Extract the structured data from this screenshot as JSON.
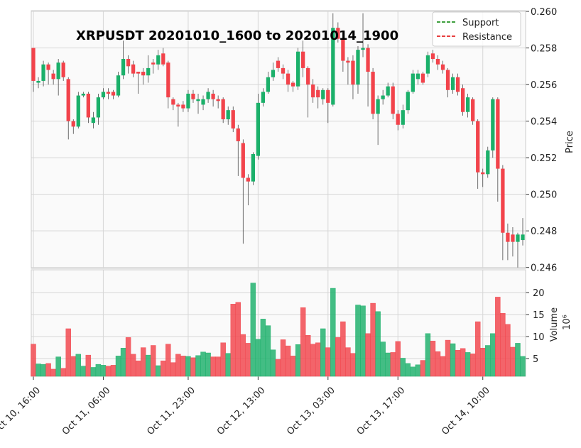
{
  "chart_data": {
    "type": "candlestick",
    "title": "XRPUSDT 20201010_1600 to 20201014_1900",
    "y_label": "Price",
    "y2_label": "Volume",
    "y2_offset": "10⁶",
    "categories": [
      "Oct 10, 16:00",
      null,
      null,
      null,
      null,
      null,
      null,
      null,
      null,
      null,
      null,
      null,
      null,
      null,
      "Oct 11, 06:00",
      null,
      null,
      null,
      null,
      null,
      null,
      null,
      null,
      null,
      null,
      null,
      null,
      null,
      null,
      null,
      null,
      "Oct 11, 23:00",
      null,
      null,
      null,
      null,
      null,
      null,
      null,
      null,
      null,
      null,
      null,
      null,
      null,
      "Oct 12, 13:00",
      null,
      null,
      null,
      null,
      null,
      null,
      null,
      null,
      null,
      null,
      null,
      null,
      null,
      "Oct 13, 03:00",
      null,
      null,
      null,
      null,
      null,
      null,
      null,
      null,
      null,
      null,
      null,
      null,
      null,
      "Oct 13, 17:00",
      null,
      null,
      null,
      null,
      null,
      null,
      null,
      null,
      null,
      null,
      null,
      null,
      null,
      null,
      null,
      null,
      "Oct 14, 10:00",
      null,
      null,
      null,
      null,
      null,
      null,
      null,
      null
    ],
    "open": [
      0.258,
      0.2561,
      0.2562,
      0.2571,
      0.2566,
      0.2563,
      0.2572,
      0.2563,
      0.254,
      0.2537,
      0.2554,
      0.2555,
      0.2539,
      0.2542,
      0.2553,
      0.2556,
      0.2556,
      0.2554,
      0.2565,
      0.2574,
      0.2571,
      0.2567,
      0.2567,
      0.2565,
      0.2572,
      0.2571,
      0.2577,
      0.2572,
      0.2552,
      0.2549,
      0.2549,
      0.2547,
      0.2555,
      0.2551,
      0.2549,
      0.2552,
      0.2555,
      0.2552,
      0.2552,
      0.2541,
      0.2546,
      0.2536,
      0.2528,
      0.2509,
      0.2507,
      0.2521,
      0.255,
      0.2556,
      0.2564,
      0.2573,
      0.2569,
      0.2566,
      0.2561,
      0.2559,
      0.2578,
      0.2569,
      0.256,
      0.2557,
      0.2552,
      0.2557,
      0.2549,
      0.2591,
      0.2585,
      0.2573,
      0.2573,
      0.256,
      0.2579,
      0.258,
      0.2567,
      0.2544,
      0.2552,
      0.2554,
      0.2559,
      0.2544,
      0.2538,
      0.2546,
      0.2556,
      0.2563,
      0.2566,
      0.2566,
      0.2577,
      0.2574,
      0.2571,
      0.2568,
      0.2557,
      0.2564,
      0.2558,
      0.2545,
      0.2552,
      0.254,
      0.2512,
      0.2511,
      0.2524,
      0.2552,
      0.2514,
      0.2479,
      0.2478,
      0.2474,
      0.2475
    ],
    "close": [
      0.2562,
      0.2562,
      0.2571,
      0.2568,
      0.2563,
      0.2572,
      0.2564,
      0.254,
      0.2537,
      0.2554,
      0.2555,
      0.2542,
      0.2542,
      0.2553,
      0.2556,
      0.2555,
      0.2554,
      0.2565,
      0.2574,
      0.257,
      0.2566,
      0.2566,
      0.2565,
      0.2569,
      0.2571,
      0.2576,
      0.2571,
      0.2553,
      0.2549,
      0.2548,
      0.2547,
      0.2555,
      0.2552,
      0.2552,
      0.2552,
      0.2556,
      0.2552,
      0.2551,
      0.2541,
      0.2546,
      0.2536,
      0.2529,
      0.2509,
      0.2507,
      0.2522,
      0.255,
      0.2556,
      0.2564,
      0.2568,
      0.2569,
      0.2566,
      0.256,
      0.2559,
      0.2578,
      0.2569,
      0.256,
      0.2553,
      0.2553,
      0.2557,
      0.255,
      0.2591,
      0.2585,
      0.2573,
      0.2572,
      0.256,
      0.2579,
      0.258,
      0.2567,
      0.2544,
      0.2552,
      0.2554,
      0.2559,
      0.2544,
      0.2538,
      0.2546,
      0.2556,
      0.2566,
      0.2566,
      0.2561,
      0.2576,
      0.2574,
      0.2571,
      0.2568,
      0.2557,
      0.2564,
      0.2556,
      0.2545,
      0.2553,
      0.254,
      0.2512,
      0.2511,
      0.2524,
      0.2552,
      0.2514,
      0.2479,
      0.2474,
      0.2474,
      0.2478,
      0.2478
    ],
    "high": [
      0.258,
      0.2564,
      0.2573,
      0.2572,
      0.2568,
      0.2574,
      0.2573,
      0.2564,
      0.2541,
      0.2556,
      0.2556,
      0.2556,
      0.2545,
      0.2555,
      0.2558,
      0.2558,
      0.2557,
      0.2567,
      0.2584,
      0.2576,
      0.2573,
      0.2567,
      0.2569,
      0.2576,
      0.2574,
      0.2579,
      0.258,
      0.2573,
      0.2553,
      0.255,
      0.2551,
      0.2557,
      0.2557,
      0.2555,
      0.2554,
      0.2558,
      0.2557,
      0.2554,
      0.2553,
      0.2548,
      0.2548,
      0.2538,
      0.253,
      0.2511,
      0.2523,
      0.2555,
      0.2558,
      0.2567,
      0.2572,
      0.2575,
      0.2571,
      0.2568,
      0.2562,
      0.258,
      0.2584,
      0.257,
      0.2563,
      0.2559,
      0.2558,
      0.2558,
      0.2599,
      0.2594,
      0.2588,
      0.2575,
      0.2576,
      0.2581,
      0.2599,
      0.2582,
      0.2569,
      0.2554,
      0.2557,
      0.2561,
      0.2561,
      0.2546,
      0.2549,
      0.2557,
      0.2568,
      0.2568,
      0.2567,
      0.2578,
      0.2579,
      0.2576,
      0.2573,
      0.2569,
      0.2566,
      0.2566,
      0.256,
      0.2555,
      0.2553,
      0.2541,
      0.2514,
      0.2526,
      0.2553,
      0.2553,
      0.2516,
      0.2484,
      0.2482,
      0.2479,
      0.2487
    ],
    "low": [
      0.2556,
      0.2558,
      0.2559,
      0.256,
      0.256,
      0.2554,
      0.2562,
      0.253,
      0.2533,
      0.2536,
      0.2553,
      0.2539,
      0.2536,
      0.2538,
      0.2552,
      0.2552,
      0.2552,
      0.2553,
      0.2563,
      0.2566,
      0.2564,
      0.2555,
      0.256,
      0.2561,
      0.2566,
      0.2568,
      0.257,
      0.2547,
      0.2546,
      0.2537,
      0.2545,
      0.2545,
      0.255,
      0.2544,
      0.2546,
      0.255,
      0.2548,
      0.2547,
      0.2539,
      0.2538,
      0.2534,
      0.251,
      0.2473,
      0.2494,
      0.2505,
      0.2519,
      0.2548,
      0.2555,
      0.2562,
      0.2567,
      0.2563,
      0.2556,
      0.2556,
      0.2557,
      0.2564,
      0.2542,
      0.255,
      0.2547,
      0.2549,
      0.2539,
      0.2548,
      0.2583,
      0.2567,
      0.256,
      0.2552,
      0.2555,
      0.2575,
      0.2548,
      0.2541,
      0.2527,
      0.2549,
      0.2553,
      0.2541,
      0.2535,
      0.2536,
      0.2544,
      0.2555,
      0.256,
      0.256,
      0.2564,
      0.2572,
      0.2568,
      0.2566,
      0.2553,
      0.2555,
      0.2554,
      0.2543,
      0.2542,
      0.2538,
      0.2503,
      0.2504,
      0.2509,
      0.252,
      0.2496,
      0.2464,
      0.2464,
      0.2466,
      0.246,
      0.2472
    ],
    "volume": [
      8.3,
      3.8,
      3.7,
      3.9,
      2.6,
      5.4,
      2.8,
      11.8,
      5.5,
      6,
      3.3,
      5.8,
      3,
      3.7,
      3.5,
      3.3,
      3.5,
      5.6,
      7.4,
      9.8,
      6,
      4.5,
      7.5,
      5.8,
      8,
      3.4,
      4.5,
      8.3,
      4.1,
      6,
      5.6,
      5.5,
      5.2,
      5.7,
      6.5,
      6.3,
      5.4,
      5.4,
      8.6,
      6.2,
      17.4,
      17.8,
      10.5,
      8.5,
      22.2,
      9.4,
      14,
      12.5,
      7,
      4.8,
      9.3,
      7.9,
      5.6,
      8.2,
      16.6,
      10.3,
      8.3,
      8.6,
      11.8,
      7.5,
      21,
      9.8,
      13.4,
      7.5,
      6.2,
      17.2,
      17,
      10.7,
      17.6,
      15.7,
      8.8,
      6.3,
      6.4,
      8.9,
      5.1,
      3.9,
      3.1,
      3.6,
      4.6,
      10.7,
      9,
      6.6,
      5.5,
      9.2,
      8.4,
      6.9,
      7.3,
      6.4,
      6.1,
      13.4,
      7.4,
      8,
      10.7,
      19,
      15.3,
      12.8,
      7.6,
      8.5,
      5.5
    ],
    "up_color": "#1bb06a",
    "down_color": "#f2434b",
    "ylim": [
      0.24595,
      0.26004
    ],
    "yticks": [
      0.246,
      0.248,
      {
        "value": 0.25,
        "label": "0.250"
      },
      0.252,
      0.254,
      0.256,
      0.258,
      {
        "value": 0.26,
        "label": "0.260"
      }
    ],
    "y2lim": [
      0.97,
      25.2
    ],
    "y2ticks": [
      5,
      10,
      15,
      20
    ],
    "grid": true,
    "legend": {
      "position": "upper right",
      "entries": [
        {
          "name": "Support",
          "color": "#008000"
        },
        {
          "name": "Resistance",
          "color": "#e00000"
        }
      ]
    }
  }
}
